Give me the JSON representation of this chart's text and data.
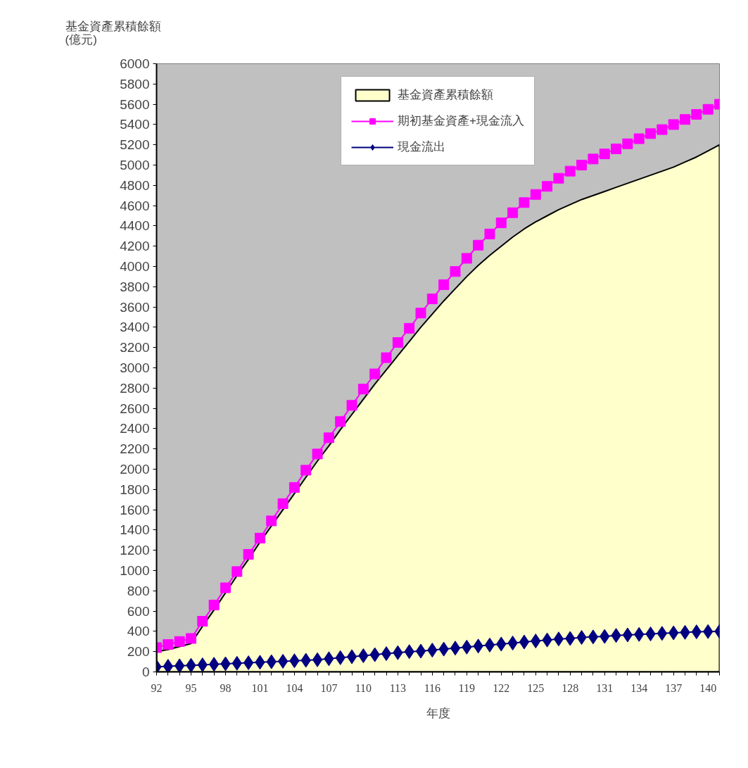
{
  "chart_data": {
    "type": "line",
    "ylabel": "基金資產累積餘額\n(億元)",
    "xlabel": "年度",
    "x": [
      92,
      93,
      94,
      95,
      96,
      97,
      98,
      99,
      100,
      101,
      102,
      103,
      104,
      105,
      106,
      107,
      108,
      109,
      110,
      111,
      112,
      113,
      114,
      115,
      116,
      117,
      118,
      119,
      120,
      121,
      122,
      123,
      124,
      125,
      126,
      127,
      128,
      129,
      130,
      131,
      132,
      133,
      134,
      135,
      136,
      137,
      138,
      139,
      140,
      141
    ],
    "xlim": [
      92,
      141
    ],
    "xticks": [
      92,
      {
        "value": 93,
        "label": null
      },
      {
        "value": 94,
        "label": null
      },
      95,
      {
        "value": 96,
        "label": null
      },
      {
        "value": 97,
        "label": null
      },
      98,
      {
        "value": 99,
        "label": null
      },
      {
        "value": 100,
        "label": null
      },
      101,
      {
        "value": 102,
        "label": null
      },
      {
        "value": 103,
        "label": null
      },
      104,
      {
        "value": 105,
        "label": null
      },
      {
        "value": 106,
        "label": null
      },
      107,
      {
        "value": 108,
        "label": null
      },
      {
        "value": 109,
        "label": null
      },
      110,
      {
        "value": 111,
        "label": null
      },
      {
        "value": 112,
        "label": null
      },
      113,
      {
        "value": 114,
        "label": null
      },
      {
        "value": 115,
        "label": null
      },
      116,
      {
        "value": 117,
        "label": null
      },
      {
        "value": 118,
        "label": null
      },
      119,
      {
        "value": 120,
        "label": null
      },
      {
        "value": 121,
        "label": null
      },
      122,
      {
        "value": 123,
        "label": null
      },
      {
        "value": 124,
        "label": null
      },
      125,
      {
        "value": 126,
        "label": null
      },
      {
        "value": 127,
        "label": null
      },
      128,
      {
        "value": 129,
        "label": null
      },
      {
        "value": 130,
        "label": null
      },
      131,
      {
        "value": 132,
        "label": null
      },
      {
        "value": 133,
        "label": null
      },
      134,
      {
        "value": 135,
        "label": null
      },
      {
        "value": 136,
        "label": null
      },
      137,
      {
        "value": 138,
        "label": null
      },
      {
        "value": 139,
        "label": null
      },
      140,
      {
        "value": 141,
        "label": null
      }
    ],
    "ylim": [
      0,
      6000
    ],
    "yticks": [
      0,
      200,
      400,
      600,
      800,
      1000,
      1200,
      1400,
      1600,
      1800,
      2000,
      2200,
      2400,
      2600,
      2800,
      3000,
      3200,
      3400,
      3600,
      3800,
      4000,
      4200,
      4400,
      4600,
      4800,
      5000,
      5200,
      5400,
      5600,
      5800,
      6000
    ],
    "grid": false,
    "legend": "top",
    "series": [
      {
        "name": "基金資產累積餘額",
        "type": "area",
        "color": "#ffffcc",
        "values": [
          200,
          220,
          250,
          280,
          450,
          610,
          780,
          950,
          1110,
          1280,
          1440,
          1600,
          1760,
          1920,
          2080,
          2230,
          2390,
          2540,
          2690,
          2840,
          2980,
          3120,
          3260,
          3400,
          3530,
          3660,
          3780,
          3900,
          4010,
          4110,
          4200,
          4290,
          4370,
          4440,
          4500,
          4560,
          4610,
          4660,
          4700,
          4740,
          4780,
          4820,
          4860,
          4900,
          4940,
          4980,
          5030,
          5080,
          5140,
          5200
        ]
      },
      {
        "name": "期初基金資產+現金流入",
        "marker": "square",
        "color": "#ff00ff",
        "values": [
          240,
          270,
          300,
          330,
          500,
          660,
          830,
          990,
          1160,
          1320,
          1490,
          1660,
          1820,
          1990,
          2150,
          2310,
          2470,
          2630,
          2790,
          2940,
          3100,
          3250,
          3390,
          3540,
          3680,
          3820,
          3950,
          4080,
          4210,
          4320,
          4430,
          4530,
          4630,
          4710,
          4790,
          4870,
          4940,
          5000,
          5060,
          5110,
          5160,
          5210,
          5260,
          5310,
          5350,
          5400,
          5450,
          5500,
          5550,
          5600
        ]
      },
      {
        "name": "現金流出",
        "marker": "diamond",
        "color": "#000080",
        "values": [
          50,
          55,
          60,
          65,
          70,
          75,
          80,
          85,
          90,
          95,
          100,
          105,
          110,
          115,
          120,
          130,
          140,
          150,
          160,
          170,
          180,
          190,
          200,
          205,
          215,
          225,
          235,
          245,
          255,
          265,
          275,
          285,
          295,
          305,
          315,
          325,
          330,
          340,
          345,
          350,
          360,
          365,
          370,
          375,
          380,
          385,
          390,
          395,
          398,
          400
        ]
      }
    ]
  }
}
